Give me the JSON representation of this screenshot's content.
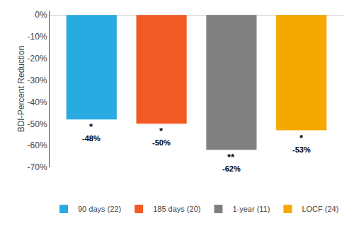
{
  "chart_data": {
    "type": "bar",
    "ylabel": "BDI-Percent Reduction",
    "categories": [
      "90 days (22)",
      "185 days (20)",
      "1-year (11)",
      "LOCF (24)"
    ],
    "values": [
      -48,
      -50,
      -62,
      -53
    ],
    "colors": [
      "#29ABE2",
      "#F15A24",
      "#808080",
      "#F5A800"
    ],
    "data_labels": true,
    "value_labels": [
      "-48%",
      "-50%",
      "-62%",
      "-53%"
    ],
    "annotations": [
      {
        "x": "90 days (22)",
        "text": "*"
      },
      {
        "x": "185 days (20)",
        "text": "*"
      },
      {
        "x": "1-year (11)",
        "text": "**"
      },
      {
        "x": "LOCF (24)",
        "text": "*"
      }
    ],
    "ylim": [
      -70,
      2
    ],
    "yticks": [
      {
        "value": 0,
        "label": "0%"
      },
      {
        "value": -10,
        "label": "-10%"
      },
      {
        "value": -20,
        "label": "-20%"
      },
      {
        "value": -30,
        "label": "-30%"
      },
      {
        "value": -40,
        "label": "-40%"
      },
      {
        "value": -50,
        "label": "-50%"
      },
      {
        "value": -60,
        "label": "-60%"
      },
      {
        "value": -70,
        "label": "-70%"
      }
    ],
    "grid": false,
    "legend": "bottom",
    "tick_labels": "y"
  }
}
